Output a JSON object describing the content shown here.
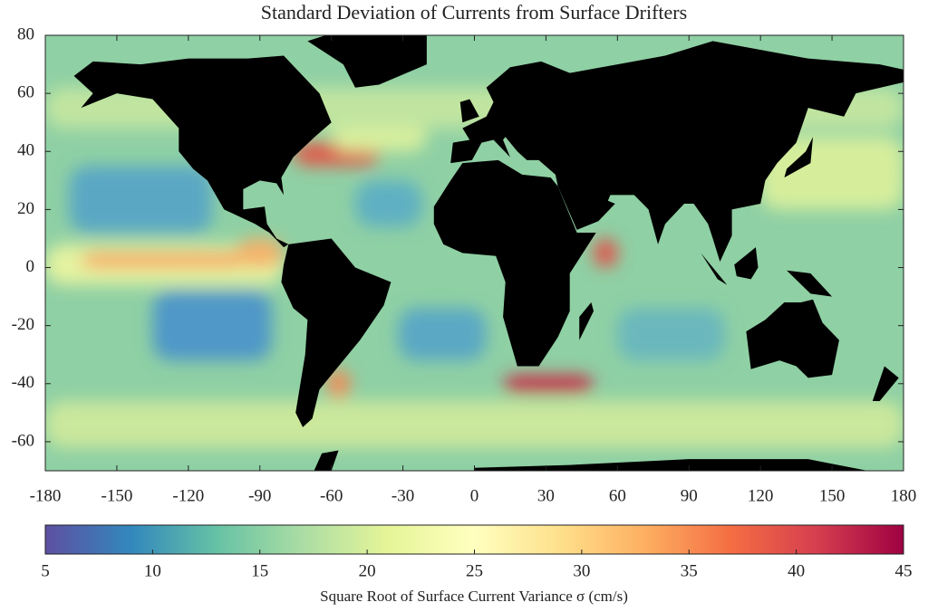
{
  "chart_data": {
    "type": "map",
    "title": "Standard Deviation of Currents from Surface Drifters",
    "xlim": [
      -180,
      180
    ],
    "xticks": [
      -180,
      -150,
      -120,
      -90,
      -60,
      -30,
      0,
      30,
      60,
      90,
      120,
      150,
      180
    ],
    "ylim": [
      -70,
      80
    ],
    "yticks": [
      -60,
      -40,
      -20,
      0,
      20,
      40,
      60,
      80
    ],
    "land_color": "#000000",
    "colorbar": {
      "lim": [
        5,
        45
      ],
      "ticks": [
        5,
        10,
        15,
        20,
        25,
        30,
        35,
        40,
        45
      ],
      "label": "Square Root of Surface Current Variance σ (cm/s)",
      "colors": [
        "#5e4fa2",
        "#3288bd",
        "#66c2a5",
        "#abdda4",
        "#e6f598",
        "#ffffbf",
        "#fee08b",
        "#fdae61",
        "#f46d43",
        "#d53e4f",
        "#9e0142"
      ]
    }
  }
}
